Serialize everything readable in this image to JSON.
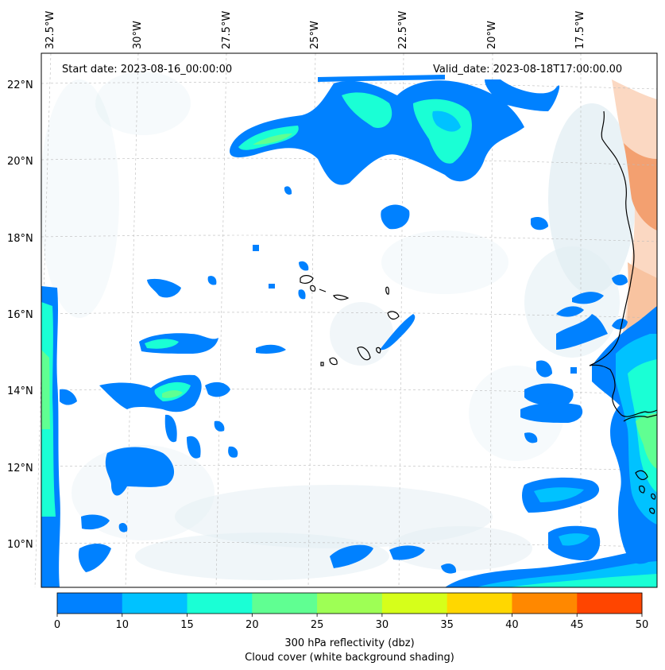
{
  "map": {
    "start_date": "Start date: 2023-08-16_00:00:00",
    "valid_date": "Valid_date: 2023-08-18T17:00:00.00",
    "lon_labels": [
      "32.5°W",
      "30°W",
      "27.5°W",
      "25°W",
      "22.5°W",
      "20°W",
      "17.5°W"
    ],
    "lat_labels": [
      "22°N",
      "20°N",
      "18°N",
      "16°N",
      "14°N",
      "12°N",
      "10°N"
    ],
    "extent": {
      "lon_min": -32.9,
      "lon_max": -15.3,
      "lat_min": 8.9,
      "lat_max": 22.8
    }
  },
  "colorbar": {
    "ticks": [
      "0",
      "10",
      "15",
      "20",
      "25",
      "30",
      "35",
      "40",
      "45",
      "50"
    ],
    "colors": [
      "#0081ff",
      "#00c2ff",
      "#1affd5",
      "#60ff92",
      "#9eff55",
      "#d6ff1a",
      "#ffd700",
      "#ff8800",
      "#ff4500"
    ],
    "label": "300 hPa reflectivity (dbz)",
    "sublabel": "Cloud cover (white background shading)"
  },
  "colors": {
    "coast": "#000000",
    "cloud_shade": "#d6e8ef",
    "land_warm": "#f7b894"
  }
}
